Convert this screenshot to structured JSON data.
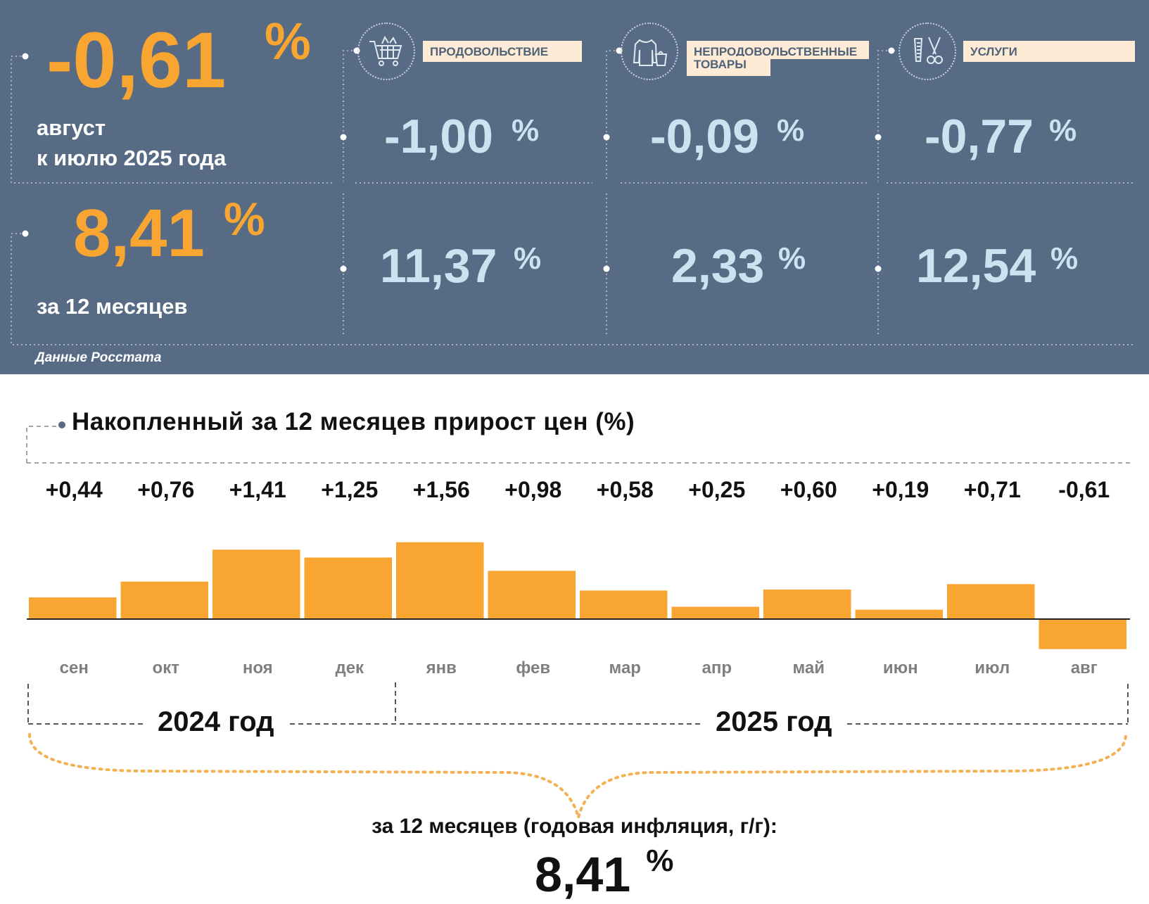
{
  "panel": {
    "monthly": {
      "value": "-0,61",
      "pct": "%",
      "line1": "август",
      "line2": "к июлю 2025 года"
    },
    "annual": {
      "value": "8,41",
      "pct": "%",
      "caption": "за 12 месяцев"
    },
    "source": "Данные Росстата",
    "categories": [
      {
        "label": "ПРОДОВОЛЬСТВИЕ",
        "icon": "shopping-cart-icon",
        "monthly": "-1,00",
        "annual": "11,37",
        "pct": "%"
      },
      {
        "label": "НЕПРОДОВОЛЬСТВЕННЫЕ ТОВАРЫ",
        "label_line1": "НЕПРОДОВОЛЬСТВЕННЫЕ",
        "label_line2": "ТОВАРЫ",
        "icon": "clothing-bag-icon",
        "monthly": "-0,09",
        "annual": "2,33",
        "pct": "%"
      },
      {
        "label": "УСЛУГИ",
        "icon": "comb-scissors-icon",
        "monthly": "-0,77",
        "annual": "12,54",
        "pct": "%"
      }
    ],
    "colors": {
      "background": "#576c84",
      "accent": "#f9a531",
      "light_value": "#cbe3f0",
      "label_bg": "#fdebd6"
    }
  },
  "chart_data": {
    "type": "bar",
    "title": "Накопленный за 12 месяцев прирост цен (%)",
    "categories": [
      "сен",
      "окт",
      "ноя",
      "дек",
      "янв",
      "фев",
      "мар",
      "апр",
      "май",
      "июн",
      "июл",
      "авг"
    ],
    "values": [
      0.44,
      0.76,
      1.41,
      1.25,
      1.56,
      0.98,
      0.58,
      0.25,
      0.6,
      0.19,
      0.71,
      -0.61
    ],
    "value_labels": [
      "+0,44",
      "+0,76",
      "+1,41",
      "+1,25",
      "+1,56",
      "+0,98",
      "+0,58",
      "+0,25",
      "+0,60",
      "+0,19",
      "+0,71",
      "-0,61"
    ],
    "years": [
      {
        "label": "2024 год",
        "months": [
          "сен",
          "окт",
          "ноя",
          "дек"
        ]
      },
      {
        "label": "2025 год",
        "months": [
          "янв",
          "фев",
          "мар",
          "апр",
          "май",
          "июн",
          "июл",
          "авг"
        ]
      }
    ],
    "bar_color": "#f9a531",
    "grid": false,
    "legend": "none"
  },
  "summary": {
    "caption": "за 12 месяцев (годовая инфляция, г/г):",
    "value": "8,41",
    "pct": "%"
  }
}
